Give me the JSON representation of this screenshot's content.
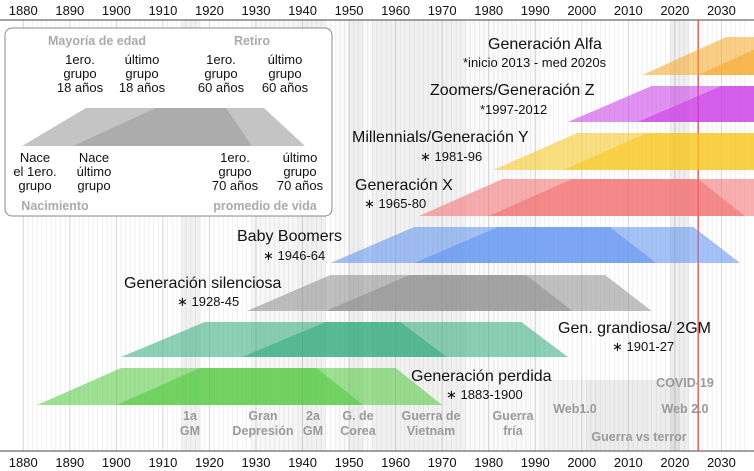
{
  "chart_data": {
    "type": "timeline",
    "xlim": [
      1875,
      2037
    ],
    "x_ticks": [
      1880,
      1890,
      1900,
      1910,
      1920,
      1930,
      1940,
      1950,
      1960,
      1970,
      1980,
      1990,
      2000,
      2010,
      2020,
      2030
    ],
    "current_year_marker": 2025,
    "generations": [
      {
        "name": "Generación Alfa",
        "years": "*inicio 2013 - med 2020s",
        "color": "#f5a623",
        "birth_start": 2013,
        "birth_end": 2025,
        "adult_start": 2031,
        "adult_end": 2043
      },
      {
        "name": "Zoomers/Generación Z",
        "years": "*1997-2012",
        "color": "#c837e6",
        "birth_start": 1997,
        "birth_end": 2012,
        "adult_start": 2015,
        "adult_end": 2030
      },
      {
        "name": "Millennials/Generación Y",
        "years": "1981-96",
        "color": "#f5c518",
        "birth_start": 1981,
        "birth_end": 1996,
        "adult_start": 1999,
        "adult_end": 2014
      },
      {
        "name": "Generación X",
        "years": "1965-80",
        "color": "#f26b6b",
        "birth_start": 1965,
        "birth_end": 1980,
        "adult_start": 1983,
        "adult_end": 1998
      },
      {
        "name": "Baby Boomers",
        "years": "1946-64",
        "color": "#5b8ff0",
        "birth_start": 1946,
        "birth_end": 1964,
        "adult_start": 1964,
        "adult_end": 1982
      },
      {
        "name": "Generación silenciosa",
        "years": "1928-45",
        "color": "#8c8c8c",
        "birth_start": 1928,
        "birth_end": 1945,
        "adult_start": 1946,
        "adult_end": 1963
      },
      {
        "name": "Gen. grandiosa/ 2GM",
        "years": "1901-27",
        "color": "#2eaa7a",
        "birth_start": 1901,
        "birth_end": 1927,
        "adult_start": 1919,
        "adult_end": 1945
      },
      {
        "name": "Generación perdida",
        "years": "1883-1900",
        "color": "#4ec93a",
        "birth_start": 1883,
        "birth_end": 1900,
        "adult_start": 1901,
        "adult_end": 1918
      }
    ],
    "events": [
      {
        "label": "1a GM",
        "lines": [
          "1a",
          "GM"
        ],
        "start": 1914,
        "end": 1918
      },
      {
        "label": "Gran Depresión",
        "lines": [
          "Gran",
          "Depresión"
        ],
        "start": 1929,
        "end": 1939
      },
      {
        "label": "2a GM",
        "lines": [
          "2a",
          "GM"
        ],
        "start": 1939,
        "end": 1945
      },
      {
        "label": "G. de Corea",
        "lines": [
          "G. de",
          "Corea"
        ],
        "start": 1950,
        "end": 1953
      },
      {
        "label": "Guerra de Vietnam",
        "lines": [
          "Guerra de",
          "Vietnam"
        ],
        "start": 1955,
        "end": 1975
      },
      {
        "label": "Guerra fría",
        "lines": [
          "Guerra",
          "fría"
        ],
        "start": 1947,
        "end": 1991
      },
      {
        "label": "Web1.0",
        "lines": [
          "Web1.0"
        ],
        "start": 1991,
        "end": 2004
      },
      {
        "label": "Guerra vs terror",
        "lines": [
          "Guerra vs terror"
        ],
        "start": 2001,
        "end": 2021
      },
      {
        "label": "Web 2.0",
        "lines": [
          "Web 2.0"
        ],
        "start": 2004,
        "end": 2021
      },
      {
        "label": "COVID-19",
        "lines": [
          "COVID-19"
        ],
        "start": 2019,
        "end": 2023
      }
    ],
    "legend": {
      "top_left": "Mayoría de edad",
      "top_right": "Retiro",
      "first_adult": [
        "1ero.",
        "grupo",
        "18 años"
      ],
      "last_adult": [
        "último",
        "grupo",
        "18 años"
      ],
      "first_retire": [
        "1ero.",
        "grupo",
        "60 años"
      ],
      "last_retire": [
        "último",
        "grupo",
        "60 años"
      ],
      "birth_first": [
        "Nace",
        "el 1ero.",
        "grupo"
      ],
      "birth_last": [
        "Nace",
        "último",
        "grupo"
      ],
      "death_first": [
        "1ero.",
        "grupo",
        "70 años"
      ],
      "death_last": [
        "último",
        "grupo",
        "70 años"
      ],
      "bottom_left": "Nacimiento",
      "bottom_right": "promedio de vida"
    }
  }
}
